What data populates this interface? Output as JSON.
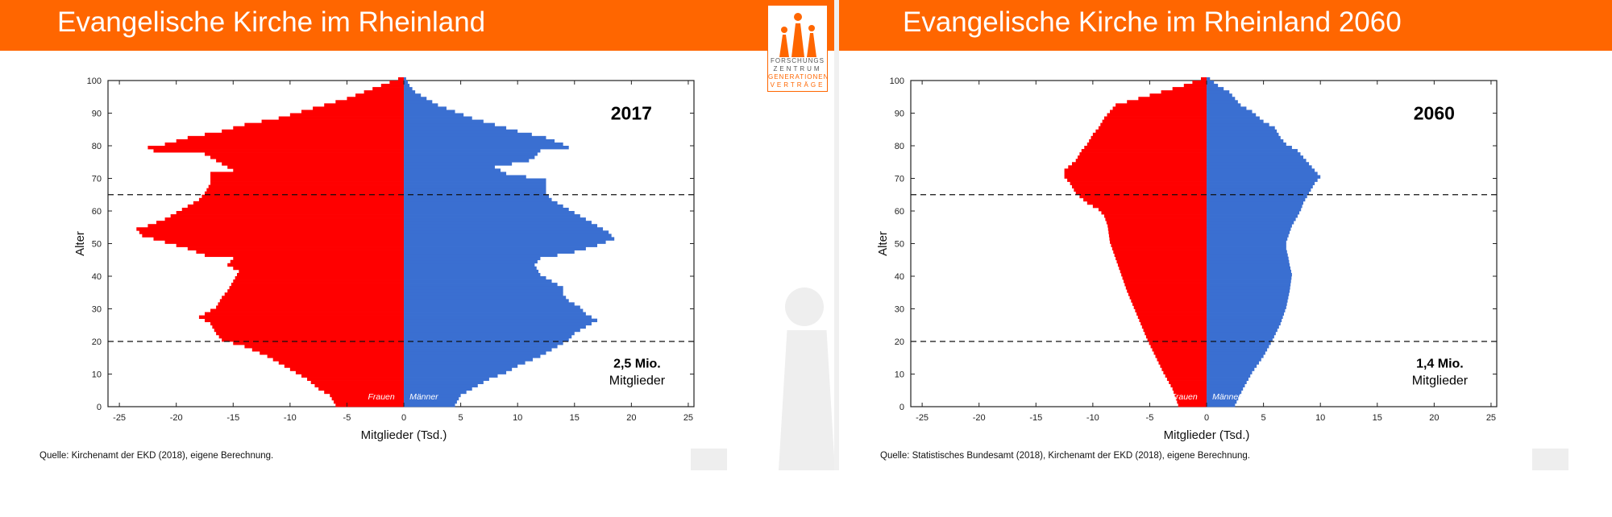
{
  "left": {
    "title": "Evangelische Kirche im Rheinland",
    "source": "Quelle: Kirchenamt der EKD (2018), eigene Berechnung.",
    "logo": {
      "line1": "FORSCHUNGS",
      "line2": "ZENTRUM",
      "line3": "GENERATIONEN",
      "line4": "VERTRÄGE"
    }
  },
  "right": {
    "title": "Evangelische Kirche im Rheinland 2060",
    "source": "Quelle: Statistisches Bundesamt (2018), Kirchenamt der EKD (2018), eigene Berechnung."
  },
  "colors": {
    "header": "#ff6600",
    "female": "#ff0000",
    "male": "#3a6fd1"
  },
  "chart_data": [
    {
      "type": "bar",
      "orientation": "horizontal",
      "year_label": "2017",
      "annotation_line1": "2,5 Mio.",
      "annotation_line2": "Mitglieder",
      "xlabel": "Mitglieder (Tsd.)",
      "ylabel": "Alter",
      "xlim": [
        -26,
        25.5
      ],
      "ylim": [
        0,
        100
      ],
      "xticks": [
        -25,
        -20,
        -15,
        -10,
        -5,
        0,
        5,
        10,
        15,
        20,
        25
      ],
      "yticks": [
        0,
        10,
        20,
        30,
        40,
        50,
        60,
        70,
        80,
        90,
        100
      ],
      "reference_lines": [
        20,
        65
      ],
      "series_labels": {
        "female": "Frauen",
        "male": "Männer"
      },
      "female_anchors": [
        [
          0,
          6
        ],
        [
          3,
          6.5
        ],
        [
          5,
          7.5
        ],
        [
          8,
          8.5
        ],
        [
          10,
          9.5
        ],
        [
          12,
          10.5
        ],
        [
          15,
          12
        ],
        [
          18,
          14
        ],
        [
          20,
          16
        ],
        [
          22,
          16.5
        ],
        [
          25,
          17
        ],
        [
          27,
          18
        ],
        [
          30,
          16.5
        ],
        [
          33,
          16
        ],
        [
          35,
          15.5
        ],
        [
          38,
          15
        ],
        [
          41,
          14.5
        ],
        [
          43,
          15.5
        ],
        [
          45,
          15
        ],
        [
          46,
          17.5
        ],
        [
          48,
          19
        ],
        [
          50,
          21
        ],
        [
          52,
          23
        ],
        [
          54,
          23.5
        ],
        [
          55,
          22.5
        ],
        [
          57,
          21
        ],
        [
          59,
          20
        ],
        [
          61,
          19
        ],
        [
          63,
          18
        ],
        [
          65,
          17.5
        ],
        [
          68,
          17
        ],
        [
          70,
          17
        ],
        [
          71,
          17
        ],
        [
          72,
          15
        ],
        [
          74,
          16
        ],
        [
          76,
          17
        ],
        [
          77,
          17.5
        ],
        [
          78,
          22
        ],
        [
          79,
          22.5
        ],
        [
          80,
          21
        ],
        [
          82,
          19
        ],
        [
          84,
          16
        ],
        [
          86,
          14
        ],
        [
          88,
          11
        ],
        [
          90,
          9
        ],
        [
          92,
          7
        ],
        [
          94,
          5
        ],
        [
          96,
          3.5
        ],
        [
          98,
          2
        ],
        [
          100,
          0.5
        ]
      ],
      "male_anchors": [
        [
          0,
          4.5
        ],
        [
          3,
          5
        ],
        [
          5,
          6
        ],
        [
          8,
          7.5
        ],
        [
          10,
          9
        ],
        [
          12,
          10
        ],
        [
          15,
          12
        ],
        [
          17,
          13
        ],
        [
          19,
          14
        ],
        [
          20,
          14.5
        ],
        [
          22,
          15
        ],
        [
          24,
          16
        ],
        [
          26,
          17
        ],
        [
          28,
          16
        ],
        [
          30,
          15.5
        ],
        [
          32,
          14.5
        ],
        [
          34,
          14
        ],
        [
          36,
          14
        ],
        [
          38,
          13
        ],
        [
          40,
          12
        ],
        [
          43,
          11.5
        ],
        [
          45,
          12
        ],
        [
          47,
          15
        ],
        [
          49,
          17
        ],
        [
          51,
          18.5
        ],
        [
          53,
          18
        ],
        [
          55,
          17
        ],
        [
          57,
          16
        ],
        [
          59,
          15
        ],
        [
          61,
          14
        ],
        [
          63,
          13
        ],
        [
          65,
          12.5
        ],
        [
          67,
          12.5
        ],
        [
          69,
          12.5
        ],
        [
          71,
          9
        ],
        [
          73,
          8
        ],
        [
          75,
          11
        ],
        [
          76,
          11.5
        ],
        [
          78,
          12
        ],
        [
          79,
          14.5
        ],
        [
          80,
          14
        ],
        [
          82,
          12.5
        ],
        [
          84,
          10
        ],
        [
          86,
          8
        ],
        [
          88,
          6
        ],
        [
          90,
          4.5
        ],
        [
          92,
          3
        ],
        [
          94,
          2
        ],
        [
          96,
          1
        ],
        [
          98,
          0.5
        ],
        [
          100,
          0.2
        ]
      ]
    },
    {
      "type": "bar",
      "orientation": "horizontal",
      "year_label": "2060",
      "annotation_line1": "1,4 Mio.",
      "annotation_line2": "Mitglieder",
      "xlabel": "Mitglieder (Tsd.)",
      "ylabel": "Alter",
      "xlim": [
        -26,
        25.5
      ],
      "ylim": [
        0,
        100
      ],
      "xticks": [
        -25,
        -20,
        -15,
        -10,
        -5,
        0,
        5,
        10,
        15,
        20,
        25
      ],
      "yticks": [
        0,
        10,
        20,
        30,
        40,
        50,
        60,
        70,
        80,
        90,
        100
      ],
      "reference_lines": [
        20,
        65
      ],
      "series_labels": {
        "female": "Frauen",
        "male": "Männer"
      },
      "female_anchors": [
        [
          0,
          2.5
        ],
        [
          5,
          3
        ],
        [
          10,
          3.8
        ],
        [
          15,
          4.5
        ],
        [
          20,
          5.2
        ],
        [
          25,
          5.8
        ],
        [
          30,
          6.4
        ],
        [
          35,
          7
        ],
        [
          40,
          7.5
        ],
        [
          45,
          8
        ],
        [
          50,
          8.5
        ],
        [
          55,
          8.7
        ],
        [
          58,
          9
        ],
        [
          60,
          9.5
        ],
        [
          62,
          10.5
        ],
        [
          65,
          11.5
        ],
        [
          68,
          12
        ],
        [
          70,
          12.5
        ],
        [
          72,
          12.5
        ],
        [
          75,
          11.5
        ],
        [
          78,
          11
        ],
        [
          80,
          10.5
        ],
        [
          83,
          10
        ],
        [
          85,
          9.5
        ],
        [
          88,
          9
        ],
        [
          90,
          8.5
        ],
        [
          92,
          8
        ],
        [
          94,
          6
        ],
        [
          96,
          4
        ],
        [
          98,
          2
        ],
        [
          100,
          0.5
        ]
      ],
      "male_anchors": [
        [
          0,
          2.5
        ],
        [
          5,
          3.2
        ],
        [
          10,
          4
        ],
        [
          15,
          5
        ],
        [
          20,
          5.8
        ],
        [
          25,
          6.5
        ],
        [
          30,
          7
        ],
        [
          35,
          7.3
        ],
        [
          40,
          7.5
        ],
        [
          43,
          7.3
        ],
        [
          45,
          7.2
        ],
        [
          48,
          7
        ],
        [
          50,
          7
        ],
        [
          52,
          7.2
        ],
        [
          55,
          7.5
        ],
        [
          58,
          8
        ],
        [
          60,
          8.3
        ],
        [
          62,
          8.5
        ],
        [
          65,
          9
        ],
        [
          68,
          9.5
        ],
        [
          70,
          10
        ],
        [
          72,
          9.5
        ],
        [
          74,
          9
        ],
        [
          76,
          8.5
        ],
        [
          78,
          8
        ],
        [
          80,
          7
        ],
        [
          82,
          6.5
        ],
        [
          85,
          6
        ],
        [
          87,
          5
        ],
        [
          90,
          4
        ],
        [
          92,
          3
        ],
        [
          94,
          2.5
        ],
        [
          96,
          2
        ],
        [
          98,
          1
        ],
        [
          100,
          0.3
        ]
      ]
    }
  ]
}
